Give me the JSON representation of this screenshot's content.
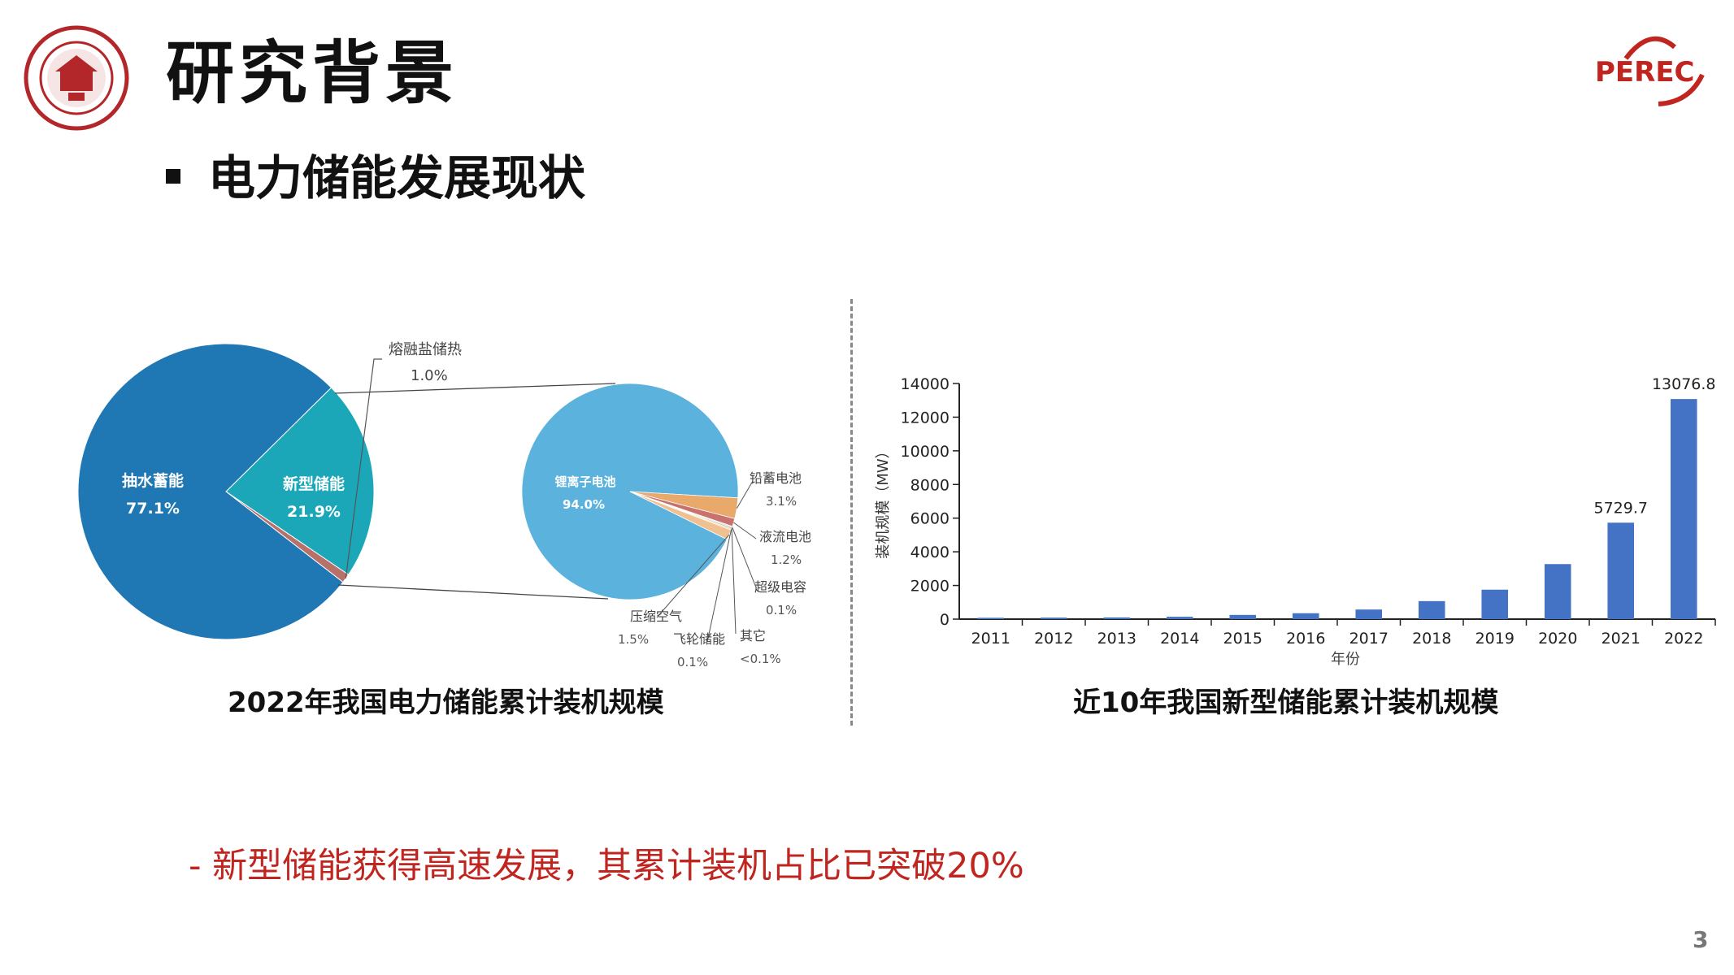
{
  "slide": {
    "title": "研究背景",
    "section_heading": "电力储能发展现状",
    "highlight": "- 新型储能获得高速发展，其累计装机占比已突破20%",
    "page_number": "3",
    "brand_logo_text": "PEREC",
    "accent_color": "#c0251f"
  },
  "chart_data": [
    {
      "type": "pie",
      "title": "2022年我国电力储能累计装机规模",
      "slices": [
        {
          "label": "抽水蓄能",
          "value": 77.1,
          "value_label": "77.1%",
          "color": "#1f77b4"
        },
        {
          "label": "新型储能",
          "value": 21.9,
          "value_label": "21.9%",
          "color": "#1ba7b8"
        },
        {
          "label": "熔融盐储热",
          "value": 1.0,
          "value_label": "1.0%",
          "color": "#b8706a"
        }
      ],
      "breakdown_of": "新型储能",
      "breakdown": [
        {
          "label": "锂离子电池",
          "value": 94.0,
          "value_label": "94.0%",
          "color": "#5bb2dc"
        },
        {
          "label": "铅蓄电池",
          "value": 3.1,
          "value_label": "3.1%",
          "color": "#e8a96b"
        },
        {
          "label": "液流电池",
          "value": 1.2,
          "value_label": "1.2%",
          "color": "#c9726d"
        },
        {
          "label": "超级电容",
          "value": 0.1,
          "value_label": "0.1%",
          "color": "#d9d9d9"
        },
        {
          "label": "其它",
          "value": 0.1,
          "value_label": "<0.1%",
          "color": "#a0a0a0"
        },
        {
          "label": "飞轮储能",
          "value": 0.1,
          "value_label": "0.1%",
          "color": "#f2d36b"
        },
        {
          "label": "压缩空气",
          "value": 1.5,
          "value_label": "1.5%",
          "color": "#f0c090"
        }
      ]
    },
    {
      "type": "bar",
      "title": "近10年我国新型储能累计装机规模",
      "xlabel": "年份",
      "ylabel": "装机规模（MW）",
      "ylim": [
        0,
        14000
      ],
      "yticks": [
        "0",
        "2000",
        "4000",
        "6000",
        "8000",
        "10000",
        "12000",
        "14000"
      ],
      "categories": [
        "2011",
        "2012",
        "2013",
        "2014",
        "2015",
        "2016",
        "2017",
        "2018",
        "2019",
        "2020",
        "2021",
        "2022"
      ],
      "values": [
        80,
        90,
        100,
        140,
        250,
        350,
        570,
        1070,
        1750,
        3270,
        5729.7,
        13076.8
      ],
      "data_labels": {
        "10": "5729.7",
        "11": "13076.8"
      },
      "bar_color": "#4472c4",
      "grid": false
    }
  ]
}
